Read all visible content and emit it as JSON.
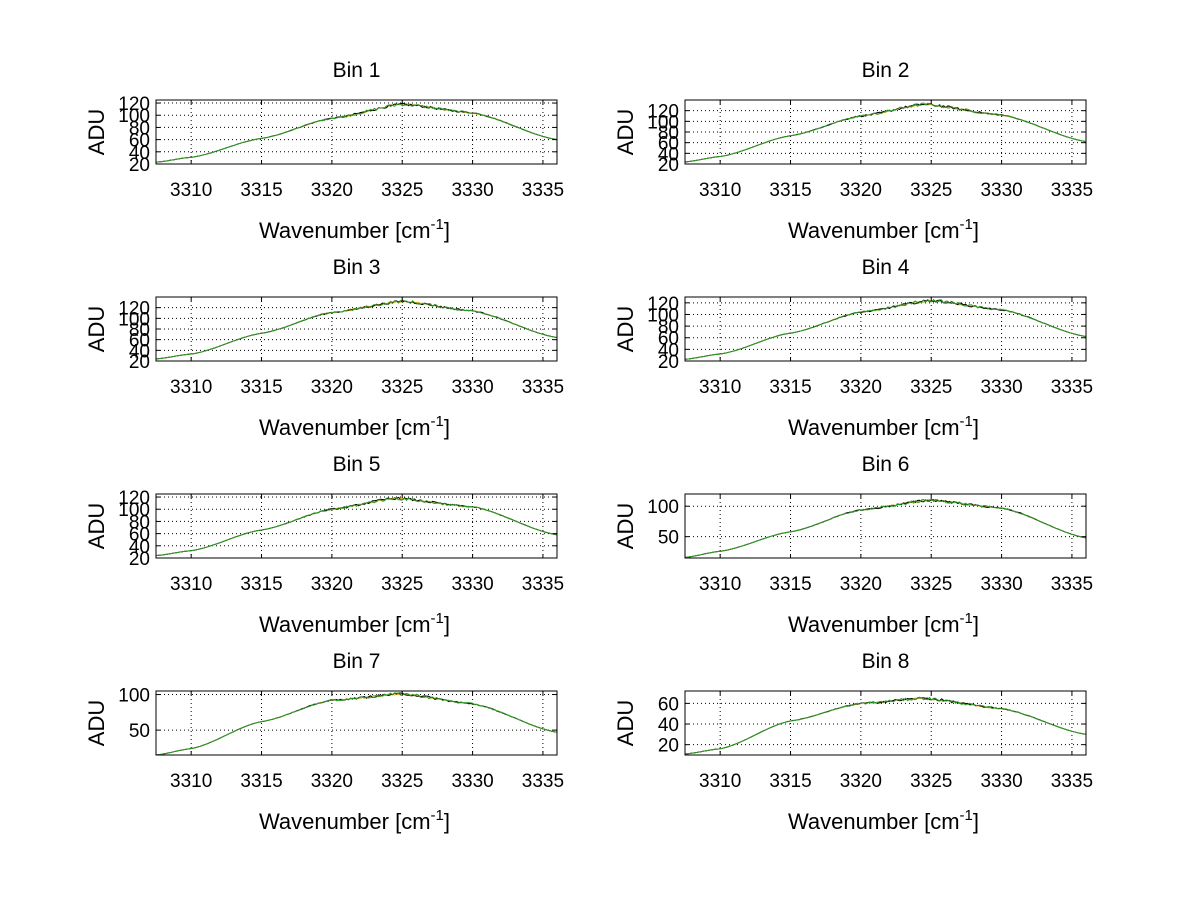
{
  "chart_data": [
    {
      "type": "line",
      "title": "Bin 1",
      "xlabel_main": "Wavenumber [cm",
      "xlabel_sup": "-1",
      "xlabel_end": "]",
      "ylabel": "ADU",
      "xlim": [
        3307.5,
        3336
      ],
      "ylim": [
        20,
        125
      ],
      "xticks": [
        3310,
        3315,
        3320,
        3325,
        3330,
        3335
      ],
      "xtick_labels": [
        "3310",
        "3315",
        "3320",
        "3325",
        "3330",
        "3335"
      ],
      "yticks": [
        20,
        40,
        60,
        80,
        100,
        120
      ],
      "ytick_labels": [
        "20",
        "40",
        "60",
        "80",
        "100",
        "120"
      ],
      "grid": true,
      "peak_x": 3325,
      "series": [
        {
          "color": "#e8a400",
          "values": [
            [
              3307.5,
              23
            ],
            [
              3310,
              31
            ],
            [
              3315,
              62
            ],
            [
              3320,
              95
            ],
            [
              3325,
              118
            ],
            [
              3330,
              104
            ],
            [
              3336,
              60
            ]
          ]
        },
        {
          "color": "#000000",
          "values": [
            [
              3307.5,
              23
            ],
            [
              3310,
              31
            ],
            [
              3315,
              62
            ],
            [
              3320,
              95
            ],
            [
              3325,
              118
            ],
            [
              3330,
              104
            ],
            [
              3336,
              60
            ]
          ]
        },
        {
          "color": "#2e9e2e",
          "values": [
            [
              3307.5,
              23
            ],
            [
              3310,
              31
            ],
            [
              3315,
              62
            ],
            [
              3320,
              95
            ],
            [
              3325,
              118
            ],
            [
              3330,
              104
            ],
            [
              3336,
              60
            ]
          ]
        }
      ]
    },
    {
      "type": "line",
      "title": "Bin 2",
      "xlabel_main": "Wavenumber [cm",
      "xlabel_sup": "-1",
      "xlabel_end": "]",
      "ylabel": "ADU",
      "xlim": [
        3307.5,
        3336
      ],
      "ylim": [
        20,
        140
      ],
      "xticks": [
        3310,
        3315,
        3320,
        3325,
        3330,
        3335
      ],
      "xtick_labels": [
        "3310",
        "3315",
        "3320",
        "3325",
        "3330",
        "3335"
      ],
      "yticks": [
        20,
        40,
        60,
        80,
        100,
        120
      ],
      "ytick_labels": [
        "20",
        "40",
        "60",
        "80",
        "100",
        "120"
      ],
      "grid": true,
      "peak_x": 3324.5,
      "series": [
        {
          "color": "#e8a400",
          "values": [
            [
              3307.5,
              24
            ],
            [
              3310,
              34
            ],
            [
              3315,
              73
            ],
            [
              3320,
              110
            ],
            [
              3324.5,
              132
            ],
            [
              3330,
              112
            ],
            [
              3336,
              62
            ]
          ]
        },
        {
          "color": "#000000",
          "values": [
            [
              3307.5,
              24
            ],
            [
              3310,
              34
            ],
            [
              3315,
              73
            ],
            [
              3320,
              110
            ],
            [
              3324.5,
              132
            ],
            [
              3330,
              112
            ],
            [
              3336,
              62
            ]
          ]
        },
        {
          "color": "#2e9e2e",
          "values": [
            [
              3307.5,
              24
            ],
            [
              3310,
              34
            ],
            [
              3315,
              73
            ],
            [
              3320,
              110
            ],
            [
              3324.5,
              132
            ],
            [
              3330,
              112
            ],
            [
              3336,
              62
            ]
          ]
        }
      ]
    },
    {
      "type": "line",
      "title": "Bin 3",
      "xlabel_main": "Wavenumber [cm",
      "xlabel_sup": "-1",
      "xlabel_end": "]",
      "ylabel": "ADU",
      "xlim": [
        3307.5,
        3336
      ],
      "ylim": [
        20,
        140
      ],
      "xticks": [
        3310,
        3315,
        3320,
        3325,
        3330,
        3335
      ],
      "xtick_labels": [
        "3310",
        "3315",
        "3320",
        "3325",
        "3330",
        "3335"
      ],
      "yticks": [
        20,
        40,
        60,
        80,
        100,
        120
      ],
      "ytick_labels": [
        "20",
        "40",
        "60",
        "80",
        "100",
        "120"
      ],
      "grid": true,
      "peak_x": 3325,
      "series": [
        {
          "color": "#e8a400",
          "values": [
            [
              3307.5,
              24
            ],
            [
              3310,
              33
            ],
            [
              3315,
              72
            ],
            [
              3320,
              111
            ],
            [
              3325,
              132
            ],
            [
              3330,
              114
            ],
            [
              3336,
              64
            ]
          ]
        },
        {
          "color": "#000000",
          "values": [
            [
              3307.5,
              24
            ],
            [
              3310,
              33
            ],
            [
              3315,
              72
            ],
            [
              3320,
              111
            ],
            [
              3325,
              132
            ],
            [
              3330,
              114
            ],
            [
              3336,
              64
            ]
          ]
        },
        {
          "color": "#2e9e2e",
          "values": [
            [
              3307.5,
              24
            ],
            [
              3310,
              33
            ],
            [
              3315,
              72
            ],
            [
              3320,
              111
            ],
            [
              3325,
              132
            ],
            [
              3330,
              114
            ],
            [
              3336,
              64
            ]
          ]
        }
      ]
    },
    {
      "type": "line",
      "title": "Bin 4",
      "xlabel_main": "Wavenumber [cm",
      "xlabel_sup": "-1",
      "xlabel_end": "]",
      "ylabel": "ADU",
      "xlim": [
        3307.5,
        3336
      ],
      "ylim": [
        20,
        130
      ],
      "xticks": [
        3310,
        3315,
        3320,
        3325,
        3330,
        3335
      ],
      "xtick_labels": [
        "3310",
        "3315",
        "3320",
        "3325",
        "3330",
        "3335"
      ],
      "yticks": [
        20,
        40,
        60,
        80,
        100,
        120
      ],
      "ytick_labels": [
        "20",
        "40",
        "60",
        "80",
        "100",
        "120"
      ],
      "grid": true,
      "peak_x": 3325,
      "series": [
        {
          "color": "#e8a400",
          "values": [
            [
              3307.5,
              23
            ],
            [
              3310,
              32
            ],
            [
              3315,
              68
            ],
            [
              3320,
              104
            ],
            [
              3325,
              124
            ],
            [
              3330,
              108
            ],
            [
              3336,
              62
            ]
          ]
        },
        {
          "color": "#000000",
          "values": [
            [
              3307.5,
              23
            ],
            [
              3310,
              32
            ],
            [
              3315,
              68
            ],
            [
              3320,
              104
            ],
            [
              3325,
              124
            ],
            [
              3330,
              108
            ],
            [
              3336,
              62
            ]
          ]
        },
        {
          "color": "#2e9e2e",
          "values": [
            [
              3307.5,
              23
            ],
            [
              3310,
              32
            ],
            [
              3315,
              68
            ],
            [
              3320,
              104
            ],
            [
              3325,
              124
            ],
            [
              3330,
              108
            ],
            [
              3336,
              62
            ]
          ]
        }
      ]
    },
    {
      "type": "line",
      "title": "Bin 5",
      "xlabel_main": "Wavenumber [cm",
      "xlabel_sup": "-1",
      "xlabel_end": "]",
      "ylabel": "ADU",
      "xlim": [
        3307.5,
        3336
      ],
      "ylim": [
        20,
        125
      ],
      "xticks": [
        3310,
        3315,
        3320,
        3325,
        3330,
        3335
      ],
      "xtick_labels": [
        "3310",
        "3315",
        "3320",
        "3325",
        "3330",
        "3335"
      ],
      "yticks": [
        20,
        40,
        60,
        80,
        100,
        120
      ],
      "ytick_labels": [
        "20",
        "40",
        "60",
        "80",
        "100",
        "120"
      ],
      "grid": true,
      "peak_x": 3324.5,
      "series": [
        {
          "color": "#e8a400",
          "values": [
            [
              3307.5,
              24
            ],
            [
              3310,
              32
            ],
            [
              3315,
              66
            ],
            [
              3320,
              100
            ],
            [
              3324.5,
              118
            ],
            [
              3330,
              104
            ],
            [
              3336,
              58
            ]
          ]
        },
        {
          "color": "#000000",
          "values": [
            [
              3307.5,
              24
            ],
            [
              3310,
              32
            ],
            [
              3315,
              66
            ],
            [
              3320,
              100
            ],
            [
              3324.5,
              118
            ],
            [
              3330,
              104
            ],
            [
              3336,
              58
            ]
          ]
        },
        {
          "color": "#2e9e2e",
          "values": [
            [
              3307.5,
              24
            ],
            [
              3310,
              32
            ],
            [
              3315,
              66
            ],
            [
              3320,
              100
            ],
            [
              3324.5,
              118
            ],
            [
              3330,
              104
            ],
            [
              3336,
              58
            ]
          ]
        }
      ]
    },
    {
      "type": "line",
      "title": "Bin 6",
      "xlabel_main": "Wavenumber [cm",
      "xlabel_sup": "-1",
      "xlabel_end": "]",
      "ylabel": "ADU",
      "xlim": [
        3307.5,
        3336
      ],
      "ylim": [
        15,
        120
      ],
      "xticks": [
        3310,
        3315,
        3320,
        3325,
        3330,
        3335
      ],
      "xtick_labels": [
        "3310",
        "3315",
        "3320",
        "3325",
        "3330",
        "3335"
      ],
      "yticks": [
        50,
        100
      ],
      "ytick_labels": [
        "50",
        "100"
      ],
      "grid": true,
      "peak_x": 3325,
      "series": [
        {
          "color": "#e8a400",
          "values": [
            [
              3307.5,
              16
            ],
            [
              3310,
              26
            ],
            [
              3315,
              58
            ],
            [
              3320,
              94
            ],
            [
              3325,
              110
            ],
            [
              3330,
              97
            ],
            [
              3336,
              48
            ]
          ]
        },
        {
          "color": "#000000",
          "values": [
            [
              3307.5,
              16
            ],
            [
              3310,
              26
            ],
            [
              3315,
              58
            ],
            [
              3320,
              94
            ],
            [
              3325,
              110
            ],
            [
              3330,
              97
            ],
            [
              3336,
              48
            ]
          ]
        },
        {
          "color": "#2e9e2e",
          "values": [
            [
              3307.5,
              16
            ],
            [
              3310,
              26
            ],
            [
              3315,
              58
            ],
            [
              3320,
              94
            ],
            [
              3325,
              110
            ],
            [
              3330,
              97
            ],
            [
              3336,
              48
            ]
          ]
        }
      ]
    },
    {
      "type": "line",
      "title": "Bin 7",
      "xlabel_main": "Wavenumber [cm",
      "xlabel_sup": "-1",
      "xlabel_end": "]",
      "ylabel": "ADU",
      "xlim": [
        3307.5,
        3336
      ],
      "ylim": [
        15,
        105
      ],
      "xticks": [
        3310,
        3315,
        3320,
        3325,
        3330,
        3335
      ],
      "xtick_labels": [
        "3310",
        "3315",
        "3320",
        "3325",
        "3330",
        "3335"
      ],
      "yticks": [
        50,
        100
      ],
      "ytick_labels": [
        "50",
        "100"
      ],
      "grid": true,
      "peak_x": 3325,
      "series": [
        {
          "color": "#e8a400",
          "values": [
            [
              3307.5,
              15
            ],
            [
              3310,
              24
            ],
            [
              3315,
              62
            ],
            [
              3320,
              92
            ],
            [
              3325,
              101
            ],
            [
              3330,
              87
            ],
            [
              3336,
              47
            ]
          ]
        },
        {
          "color": "#000000",
          "values": [
            [
              3307.5,
              15
            ],
            [
              3310,
              24
            ],
            [
              3315,
              62
            ],
            [
              3320,
              92
            ],
            [
              3325,
              101
            ],
            [
              3330,
              87
            ],
            [
              3336,
              47
            ]
          ]
        },
        {
          "color": "#2e9e2e",
          "values": [
            [
              3307.5,
              15
            ],
            [
              3310,
              24
            ],
            [
              3315,
              62
            ],
            [
              3320,
              92
            ],
            [
              3325,
              101
            ],
            [
              3330,
              87
            ],
            [
              3336,
              47
            ]
          ]
        }
      ]
    },
    {
      "type": "line",
      "title": "Bin 8",
      "xlabel_main": "Wavenumber [cm",
      "xlabel_sup": "-1",
      "xlabel_end": "]",
      "ylabel": "ADU",
      "xlim": [
        3307.5,
        3336
      ],
      "ylim": [
        10,
        72
      ],
      "xticks": [
        3310,
        3315,
        3320,
        3325,
        3330,
        3335
      ],
      "xtick_labels": [
        "3310",
        "3315",
        "3320",
        "3325",
        "3330",
        "3335"
      ],
      "yticks": [
        20,
        40,
        60
      ],
      "ytick_labels": [
        "20",
        "40",
        "60"
      ],
      "grid": true,
      "peak_x": 3324.5,
      "series": [
        {
          "color": "#e8a400",
          "values": [
            [
              3307.5,
              11
            ],
            [
              3310,
              16
            ],
            [
              3315,
              43
            ],
            [
              3320,
              60
            ],
            [
              3324.5,
              65
            ],
            [
              3330,
              55
            ],
            [
              3336,
              30
            ]
          ]
        },
        {
          "color": "#000000",
          "values": [
            [
              3307.5,
              11
            ],
            [
              3310,
              16
            ],
            [
              3315,
              43
            ],
            [
              3320,
              60
            ],
            [
              3324.5,
              65
            ],
            [
              3330,
              55
            ],
            [
              3336,
              30
            ]
          ]
        },
        {
          "color": "#2e9e2e",
          "values": [
            [
              3307.5,
              11
            ],
            [
              3310,
              16
            ],
            [
              3315,
              43
            ],
            [
              3320,
              60
            ],
            [
              3324.5,
              65
            ],
            [
              3330,
              55
            ],
            [
              3336,
              30
            ]
          ]
        }
      ]
    }
  ]
}
